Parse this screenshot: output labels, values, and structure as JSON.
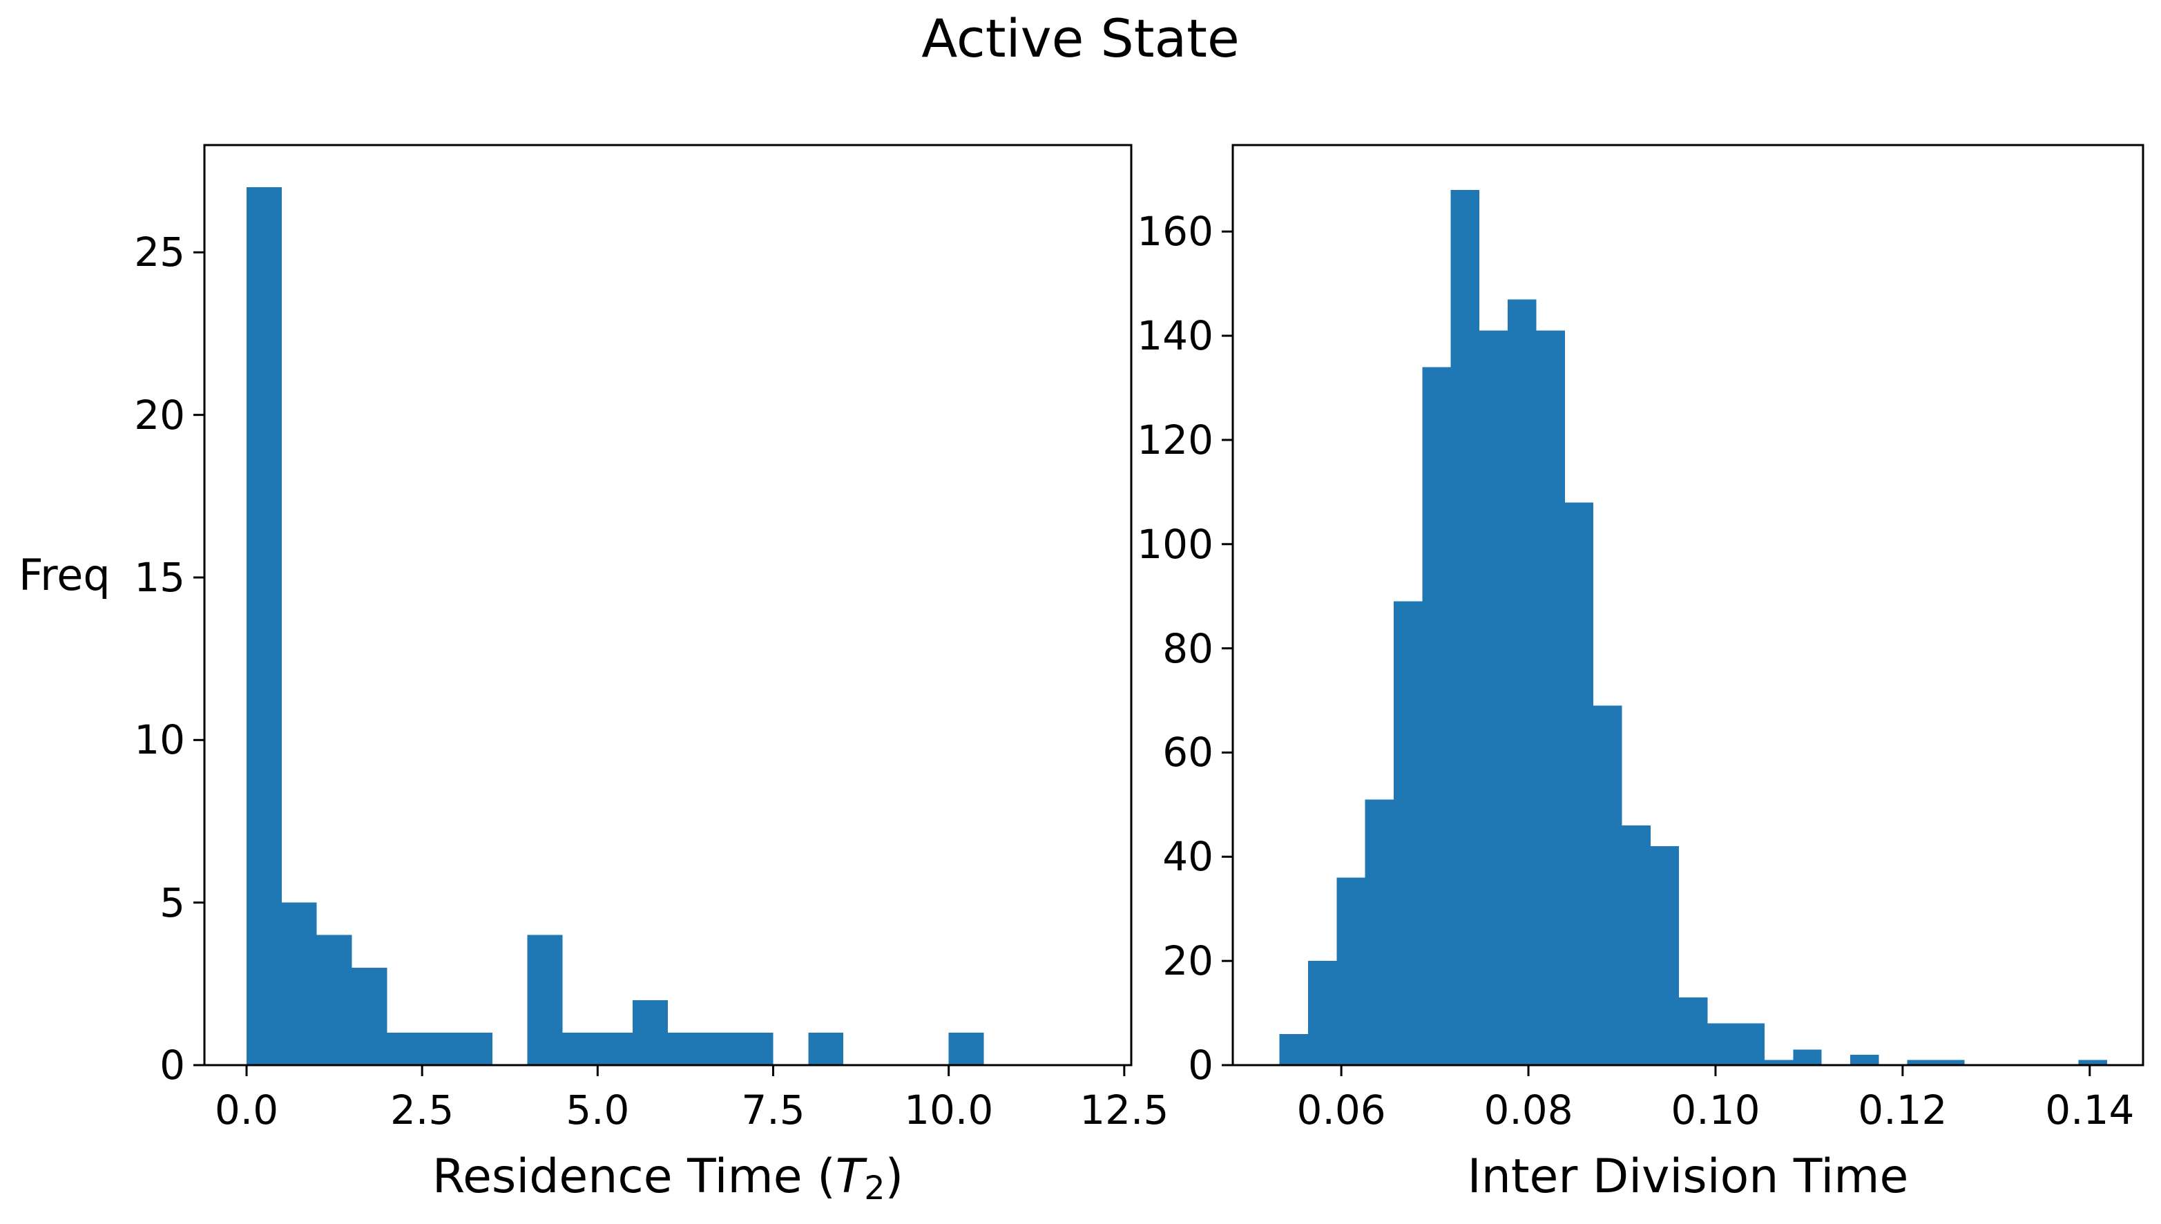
{
  "title": "Active State",
  "colors": {
    "bar": "#1f77b4",
    "spine": "#000000",
    "text": "#000000",
    "background": "#ffffff"
  },
  "chart_data": [
    {
      "type": "bar",
      "subtype": "histogram",
      "title": "",
      "xlabel": "Residence Time (T_2)",
      "xlabel_parts": {
        "pre": "Residence Time (",
        "italic_var": "T",
        "subscript": "2",
        "post": ")"
      },
      "ylabel": "Freq",
      "bin_start": 0.0,
      "bin_width": 0.5,
      "values": [
        27,
        5,
        4,
        3,
        1,
        1,
        1,
        0,
        4,
        1,
        1,
        2,
        1,
        1,
        1,
        0,
        1,
        0,
        0,
        0,
        1,
        0,
        0,
        0
      ],
      "xlim": [
        -0.6,
        12.6
      ],
      "ylim": [
        0,
        28.3
      ],
      "xticks": [
        0.0,
        2.5,
        5.0,
        7.5,
        10.0,
        12.5
      ],
      "xtick_labels": [
        "0.0",
        "2.5",
        "5.0",
        "7.5",
        "10.0",
        "12.5"
      ],
      "yticks": [
        0,
        5,
        10,
        15,
        20,
        25
      ],
      "ytick_labels": [
        "0",
        "5",
        "10",
        "15",
        "20",
        "25"
      ],
      "grid": false,
      "legend": null
    },
    {
      "type": "bar",
      "subtype": "histogram",
      "title": "",
      "xlabel": "Inter Division Time",
      "xlabel_parts": {
        "pre": "Inter Division Time",
        "italic_var": "",
        "subscript": "",
        "post": ""
      },
      "ylabel": "",
      "bin_start": 0.0534,
      "bin_width": 0.00305,
      "values": [
        6,
        20,
        36,
        51,
        89,
        134,
        168,
        141,
        147,
        141,
        108,
        69,
        46,
        42,
        13,
        8,
        8,
        1,
        3,
        0,
        2,
        0,
        1,
        1,
        0,
        0,
        0,
        0,
        1
      ],
      "xlim": [
        0.0484,
        0.1457
      ],
      "ylim": [
        0,
        176.6
      ],
      "xticks": [
        0.06,
        0.08,
        0.1,
        0.12,
        0.14
      ],
      "xtick_labels": [
        "0.06",
        "0.08",
        "0.10",
        "0.12",
        "0.14"
      ],
      "yticks": [
        0,
        20,
        40,
        60,
        80,
        100,
        120,
        140,
        160
      ],
      "ytick_labels": [
        "0",
        "20",
        "40",
        "60",
        "80",
        "100",
        "120",
        "140",
        "160"
      ],
      "grid": false,
      "legend": null
    }
  ]
}
